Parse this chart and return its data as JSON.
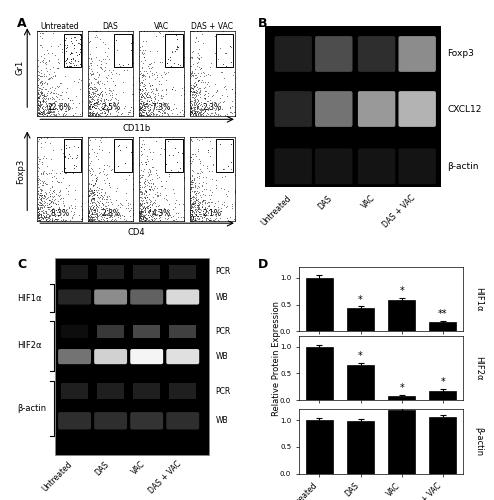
{
  "panel_A": {
    "top_row": {
      "labels": [
        "Untreated",
        "DAS",
        "VAC",
        "DAS + VAC"
      ],
      "percentages": [
        "22.6%",
        "2.5%",
        "7.3%",
        "2.3%"
      ],
      "ylabel": "Gr1",
      "xlabel": "CD11b"
    },
    "bottom_row": {
      "percentages": [
        "8.3%",
        "2.8%",
        "4.3%",
        "2.1%"
      ],
      "ylabel": "Foxp3",
      "xlabel": "CD4"
    }
  },
  "panel_B": {
    "labels": [
      "Foxp3",
      "CXCL12",
      "β-actin"
    ],
    "xlabel_labels": [
      "Untreated",
      "DAS",
      "VAC",
      "DAS + VAC"
    ]
  },
  "panel_C": {
    "row_labels": [
      "HIF1α",
      "HIF2α",
      "β-actin"
    ],
    "xlabel_labels": [
      "Untreated",
      "DAS",
      "VAC",
      "DAS + VAC"
    ]
  },
  "panel_D": {
    "categories": [
      "Untreated",
      "DAS",
      "VAC",
      "DAS + VAC"
    ],
    "HIF1a_values": [
      1.0,
      0.43,
      0.58,
      0.17
    ],
    "HIF1a_errors": [
      0.05,
      0.04,
      0.05,
      0.03
    ],
    "HIF1a_annotations": [
      "",
      "*",
      "*",
      "**"
    ],
    "HIF2a_values": [
      1.0,
      0.65,
      0.08,
      0.18
    ],
    "HIF2a_errors": [
      0.04,
      0.05,
      0.02,
      0.03
    ],
    "HIF2a_annotations": [
      "",
      "*",
      "*",
      "*"
    ],
    "bactin_values": [
      1.0,
      0.98,
      1.18,
      1.05
    ],
    "bactin_errors": [
      0.04,
      0.04,
      0.06,
      0.04
    ],
    "bactin_annotations": [
      "",
      "",
      "",
      ""
    ],
    "ylabel": "Relative Protein Expression",
    "bar_color": "#000000"
  },
  "figure_bg": "#ffffff"
}
